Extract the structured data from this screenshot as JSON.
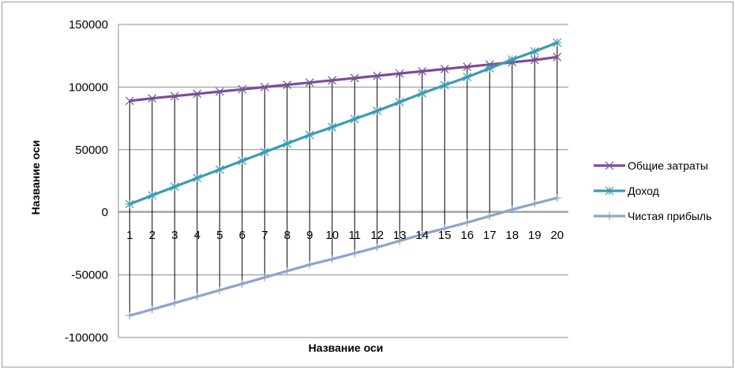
{
  "chart_data": {
    "type": "line",
    "title": "",
    "xlabel": "Название оси",
    "ylabel": "Название оси",
    "categories": [
      "1",
      "2",
      "3",
      "4",
      "5",
      "6",
      "7",
      "8",
      "9",
      "10",
      "11",
      "12",
      "13",
      "14",
      "15",
      "16",
      "17",
      "18",
      "19",
      "20"
    ],
    "y_ticks": [
      "150000",
      "100000",
      "50000",
      "0",
      "-50000",
      "-100000"
    ],
    "ylim": [
      -100000,
      150000
    ],
    "grid": true,
    "drop_lines": true,
    "legend_position": "right",
    "series": [
      {
        "name": "Общие затраты",
        "color": "#7B4E9A",
        "marker": "x",
        "values": [
          89000,
          91000,
          92800,
          94600,
          96400,
          98200,
          100000,
          101800,
          103600,
          105400,
          107200,
          109000,
          110800,
          112600,
          114400,
          116200,
          118000,
          119800,
          121600,
          124000
        ]
      },
      {
        "name": "Доход",
        "color": "#3A9BB4",
        "marker": "asterisk",
        "values": [
          6500,
          13500,
          20400,
          27300,
          34200,
          41100,
          48000,
          54900,
          61800,
          68000,
          74500,
          81000,
          88000,
          95000,
          101500,
          108000,
          115000,
          122000,
          128500,
          135500
        ]
      },
      {
        "name": "Чистая прибыль",
        "color": "#8EA4CC",
        "marker": "plus",
        "values": [
          -82500,
          -77500,
          -72400,
          -67300,
          -62200,
          -57100,
          -52000,
          -46900,
          -41800,
          -37400,
          -32700,
          -28000,
          -22800,
          -17600,
          -12900,
          -8200,
          -3000,
          2200,
          6900,
          11500
        ]
      }
    ]
  }
}
